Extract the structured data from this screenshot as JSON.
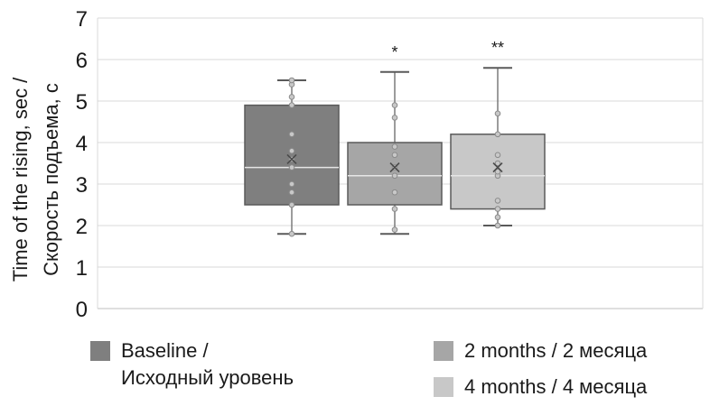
{
  "chart_data": {
    "type": "box",
    "ylabel_lines": [
      "Time of the rising, sec /",
      "Скорость подъема, с"
    ],
    "ylim": [
      0,
      7
    ],
    "yticks": [
      0,
      1,
      2,
      3,
      4,
      5,
      6,
      7
    ],
    "grid": true,
    "legend_position": "bottom",
    "series": [
      {
        "name": "Baseline /\nИсходный уровень",
        "color": "#7f7f7f",
        "min": 1.8,
        "q1": 2.5,
        "median": 3.4,
        "q3": 4.9,
        "max": 5.5,
        "mean": 3.6,
        "points": [
          1.8,
          2.5,
          2.8,
          3.0,
          3.4,
          3.6,
          3.8,
          4.2,
          4.9,
          5.1,
          5.4,
          5.5
        ],
        "annotation": ""
      },
      {
        "name": "2 months / 2 месяца",
        "color": "#a6a6a6",
        "min": 1.8,
        "q1": 2.5,
        "median": 3.2,
        "q3": 4.0,
        "max": 5.7,
        "mean": 3.4,
        "points": [
          1.9,
          2.4,
          2.8,
          3.2,
          3.4,
          3.7,
          3.9,
          4.6,
          4.9
        ],
        "annotation": "*"
      },
      {
        "name": "4 months / 4 месяца",
        "color": "#c8c8c8",
        "min": 2.0,
        "q1": 2.4,
        "median": 3.2,
        "q3": 4.2,
        "max": 5.8,
        "mean": 3.4,
        "points": [
          2.0,
          2.2,
          2.4,
          2.6,
          3.2,
          3.3,
          3.5,
          3.7,
          4.2,
          4.7
        ],
        "annotation": "**"
      }
    ]
  }
}
